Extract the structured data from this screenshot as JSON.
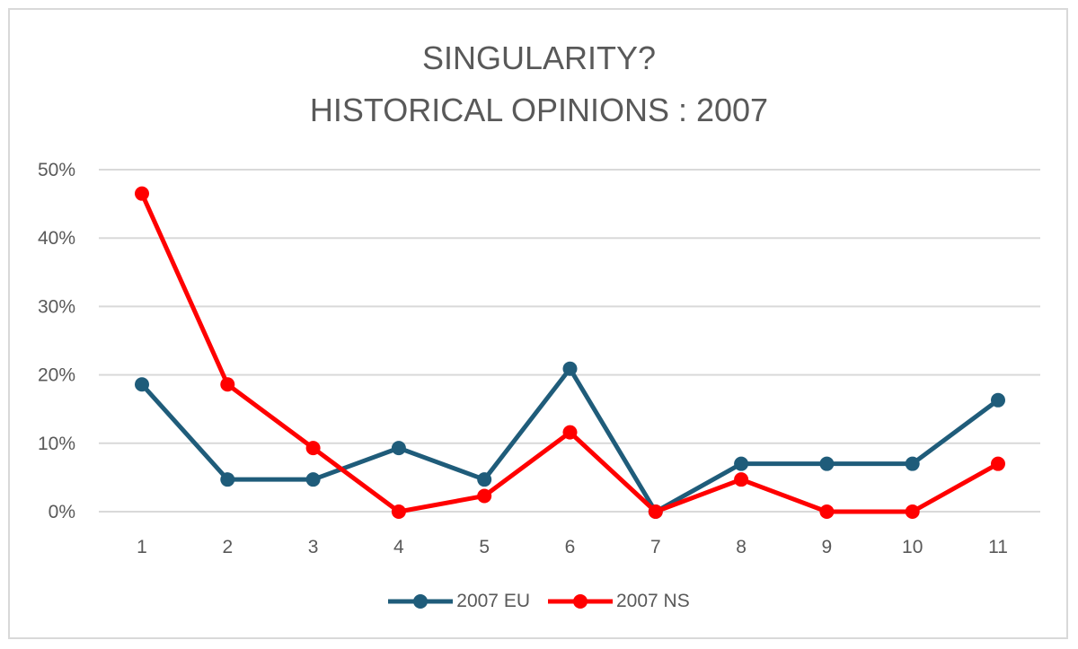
{
  "chart_data": {
    "type": "line",
    "title_line1": "SINGULARITY?",
    "title_line2": "HISTORICAL OPINIONS : 2007",
    "categories": [
      "1",
      "2",
      "3",
      "4",
      "5",
      "6",
      "7",
      "8",
      "9",
      "10",
      "11"
    ],
    "ylim": [
      0,
      0.5
    ],
    "yticks": [
      {
        "value": 0,
        "label": "0%"
      },
      {
        "value": 0.1,
        "label": "10%"
      },
      {
        "value": 0.2,
        "label": "20%"
      },
      {
        "value": 0.3,
        "label": "30%"
      },
      {
        "value": 0.4,
        "label": "40%"
      },
      {
        "value": 0.5,
        "label": "50%"
      }
    ],
    "grid": true,
    "legend_position": "bottom",
    "series": [
      {
        "name": "2007 EU",
        "color": "#1f5c7a",
        "values": [
          0.186,
          0.047,
          0.047,
          0.093,
          0.047,
          0.209,
          0.0,
          0.07,
          0.07,
          0.07,
          0.163
        ]
      },
      {
        "name": "2007 NS",
        "color": "#ff0000",
        "values": [
          0.465,
          0.186,
          0.093,
          0.0,
          0.023,
          0.116,
          0.0,
          0.047,
          0.0,
          0.0,
          0.07
        ]
      }
    ]
  }
}
